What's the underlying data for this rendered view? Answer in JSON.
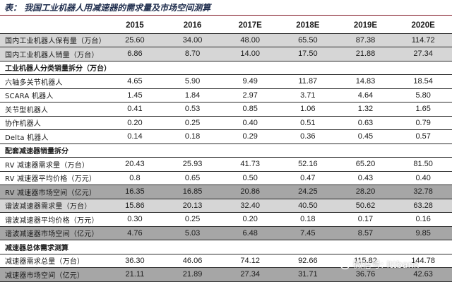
{
  "caption": "表：  我国工业机器人用减速器的需求量及市场空间测算",
  "headers": [
    "2015",
    "2016",
    "2017E",
    "2018E",
    "2019E",
    "2020E"
  ],
  "groups": [
    {
      "section": "",
      "rows": [
        {
          "label": "国内工业机器人保有量（万台）",
          "values": [
            "25.60",
            "34.00",
            "48.00",
            "65.50",
            "87.38",
            "114.72"
          ],
          "style": "light"
        },
        {
          "label": "国内工业机器人销量（万台）",
          "values": [
            "6.86",
            "8.70",
            "14.00",
            "17.50",
            "21.88",
            "27.34"
          ],
          "style": "light"
        }
      ]
    },
    {
      "section": "工业机器人分类销量拆分（万台）",
      "rows": [
        {
          "label": "六轴多关节机器人",
          "values": [
            "4.65",
            "5.90",
            "9.49",
            "11.87",
            "14.83",
            "18.54"
          ],
          "style": ""
        },
        {
          "label": "SCARA 机器人",
          "values": [
            "1.45",
            "1.84",
            "2.97",
            "3.71",
            "4.64",
            "5.80"
          ],
          "style": ""
        },
        {
          "label": "关节型机器人",
          "values": [
            "0.41",
            "0.53",
            "0.85",
            "1.06",
            "1.32",
            "1.65"
          ],
          "style": ""
        },
        {
          "label": "协作机器人",
          "values": [
            "0.20",
            "0.25",
            "0.40",
            "0.51",
            "0.63",
            "0.79"
          ],
          "style": ""
        },
        {
          "label": "Delta 机器人",
          "values": [
            "0.14",
            "0.18",
            "0.29",
            "0.36",
            "0.45",
            "0.57"
          ],
          "style": ""
        }
      ]
    },
    {
      "section": "配套减速器销量拆分",
      "rows": [
        {
          "label": "RV 减速器需求量（万台）",
          "values": [
            "20.43",
            "25.93",
            "41.73",
            "52.16",
            "65.20",
            "81.50"
          ],
          "style": "lined"
        },
        {
          "label": "RV 减速器平均价格（万元）",
          "values": [
            "0.8",
            "0.65",
            "0.50",
            "0.47",
            "0.43",
            "0.40"
          ],
          "style": "lined"
        },
        {
          "label": "RV 减速器市场空间（亿元）",
          "values": [
            "16.35",
            "16.85",
            "20.86",
            "24.25",
            "28.20",
            "32.78"
          ],
          "style": "dark"
        },
        {
          "label": "谐波减速器需求量（万台）",
          "values": [
            "15.86",
            "20.13",
            "32.40",
            "40.50",
            "50.62",
            "63.28"
          ],
          "style": "light"
        },
        {
          "label": "谐波减速器平均价格（万元）",
          "values": [
            "0.30",
            "0.25",
            "0.20",
            "0.18",
            "0.17",
            "0.16"
          ],
          "style": "lined"
        },
        {
          "label": "谐波减速器市场空间（亿元）",
          "values": [
            "4.76",
            "5.03",
            "6.48",
            "7.45",
            "8.57",
            "9.85"
          ],
          "style": "dark"
        }
      ]
    },
    {
      "section": "减速器总体需求测算",
      "rows": [
        {
          "label": "减速器需求总量（万台）",
          "values": [
            "36.30",
            "46.06",
            "74.12",
            "92.66",
            "115.82",
            "144.78"
          ],
          "style": "lined"
        },
        {
          "label": "减速器市场空间（亿元）",
          "values": [
            "21.11",
            "21.89",
            "27.34",
            "31.71",
            "36.76",
            "42.63"
          ],
          "style": "dark"
        }
      ]
    }
  ],
  "watermark": {
    "icon": "wechat-icon",
    "text": "微信号: ittbank"
  }
}
